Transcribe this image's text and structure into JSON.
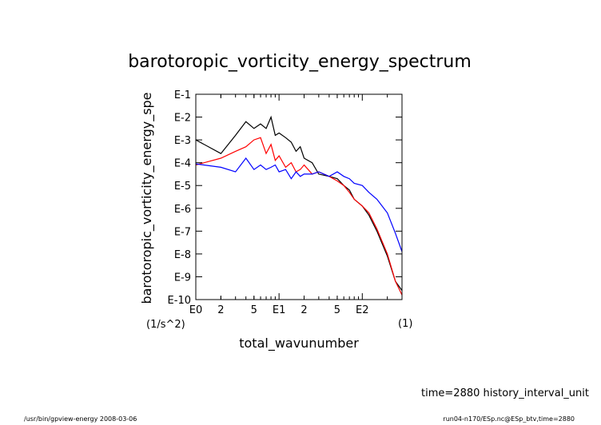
{
  "chart_data": {
    "type": "line",
    "title": "barotoropic_vorticity_energy_spectrum",
    "xlabel": "total_wavunumber",
    "xunit": "(1)",
    "ylabel": "barotoropic_vorticity_energy_spe",
    "yunit": "(1/s^2)",
    "xscale": "log",
    "yscale": "log",
    "xlim": [
      1,
      300
    ],
    "ylim": [
      1e-10,
      0.1
    ],
    "x_tick_labels": [
      {
        "v": 1,
        "label": "E0"
      },
      {
        "v": 2,
        "label": "2"
      },
      {
        "v": 5,
        "label": "5"
      },
      {
        "v": 10,
        "label": "E1"
      },
      {
        "v": 20,
        "label": "2"
      },
      {
        "v": 50,
        "label": "5"
      },
      {
        "v": 100,
        "label": "E2"
      }
    ],
    "y_tick_labels": [
      {
        "v": -1,
        "label": "E-1"
      },
      {
        "v": -2,
        "label": "E-2"
      },
      {
        "v": -3,
        "label": "E-3"
      },
      {
        "v": -4,
        "label": "E-4"
      },
      {
        "v": -5,
        "label": "E-5"
      },
      {
        "v": -6,
        "label": "E-6"
      },
      {
        "v": -7,
        "label": "E-7"
      },
      {
        "v": -8,
        "label": "E-8"
      },
      {
        "v": -9,
        "label": "E-9"
      },
      {
        "v": -10,
        "label": "E-10"
      }
    ],
    "series": [
      {
        "color": "#000000",
        "x": [
          1,
          2,
          3,
          4,
          5,
          6,
          7,
          8,
          9,
          10,
          12,
          14,
          16,
          18,
          20,
          25,
          30,
          40,
          50,
          60,
          70,
          80,
          100,
          120,
          150,
          200,
          250,
          300
        ],
        "log10_y": [
          -3.0,
          -3.6,
          -2.8,
          -2.2,
          -2.5,
          -2.3,
          -2.5,
          -2.0,
          -2.8,
          -2.7,
          -2.9,
          -3.1,
          -3.5,
          -3.3,
          -3.8,
          -4.0,
          -4.5,
          -4.6,
          -4.7,
          -5.0,
          -5.2,
          -5.6,
          -5.9,
          -6.3,
          -7.0,
          -8.1,
          -9.2,
          -9.6
        ]
      },
      {
        "color": "#ff0000",
        "x": [
          1,
          2,
          3,
          4,
          5,
          6,
          7,
          8,
          9,
          10,
          12,
          14,
          16,
          18,
          20,
          25,
          30,
          40,
          50,
          60,
          70,
          80,
          100,
          120,
          150,
          200,
          250,
          300
        ],
        "log10_y": [
          -4.1,
          -3.8,
          -3.5,
          -3.3,
          -3.0,
          -2.9,
          -3.6,
          -3.2,
          -3.9,
          -3.7,
          -4.2,
          -4.0,
          -4.4,
          -4.3,
          -4.1,
          -4.5,
          -4.4,
          -4.6,
          -4.8,
          -5.0,
          -5.3,
          -5.6,
          -5.9,
          -6.2,
          -6.9,
          -8.0,
          -9.2,
          -9.8
        ]
      },
      {
        "color": "#0000ff",
        "x": [
          1,
          2,
          3,
          4,
          5,
          6,
          7,
          8,
          9,
          10,
          12,
          14,
          16,
          18,
          20,
          25,
          30,
          40,
          50,
          60,
          70,
          80,
          100,
          120,
          150,
          200,
          250,
          300
        ],
        "log10_y": [
          -4.05,
          -4.2,
          -4.4,
          -3.8,
          -4.3,
          -4.1,
          -4.3,
          -4.2,
          -4.1,
          -4.4,
          -4.3,
          -4.7,
          -4.4,
          -4.6,
          -4.5,
          -4.5,
          -4.4,
          -4.6,
          -4.4,
          -4.6,
          -4.7,
          -4.9,
          -5.0,
          -5.3,
          -5.6,
          -6.2,
          -7.1,
          -7.9
        ]
      }
    ]
  },
  "footer": {
    "time_label": "time=2880 history_interval_unit",
    "program": "/usr/bin/gpview-energy  2008-03-06",
    "file": "run04-n170/ESp.nc@ESp_btv,time=2880"
  }
}
